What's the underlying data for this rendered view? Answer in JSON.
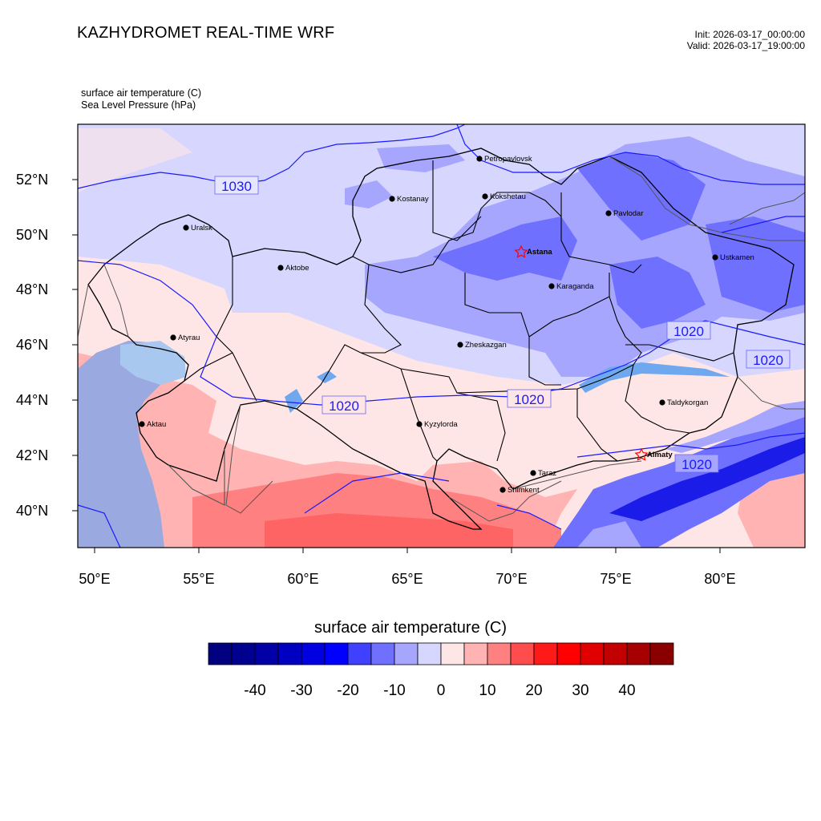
{
  "header": {
    "title": "KAZHYDROMET REAL-TIME WRF",
    "init": "Init: 2026-03-17_00:00:00",
    "valid": "Valid: 2026-03-17_19:00:00"
  },
  "variables": {
    "line1": "surface air temperature   (C)",
    "line2": "Sea Level Pressure   (hPa)"
  },
  "axes": {
    "lat_labels": [
      "52°N",
      "50°N",
      "48°N",
      "46°N",
      "44°N",
      "42°N",
      "40°N"
    ],
    "lon_labels": [
      "50°E",
      "55°E",
      "60°E",
      "65°E",
      "70°E",
      "75°E",
      "80°E"
    ]
  },
  "cities": [
    {
      "name": "Petropavlovsk",
      "capital": false
    },
    {
      "name": "Kostanay",
      "capital": false
    },
    {
      "name": "Kokshetau",
      "capital": false
    },
    {
      "name": "Pavlodar",
      "capital": false
    },
    {
      "name": "Uralsk",
      "capital": false
    },
    {
      "name": "Aktobe",
      "capital": false
    },
    {
      "name": "Astana",
      "capital": true
    },
    {
      "name": "Ustkamen",
      "capital": false
    },
    {
      "name": "Karaganda",
      "capital": false
    },
    {
      "name": "Atyrau",
      "capital": false
    },
    {
      "name": "Zheskazgan",
      "capital": false
    },
    {
      "name": "Aktau",
      "capital": false
    },
    {
      "name": "Kyzylorda",
      "capital": false
    },
    {
      "name": "Taldykorgan",
      "capital": false
    },
    {
      "name": "Almaty",
      "capital": true
    },
    {
      "name": "Taraz",
      "capital": false
    },
    {
      "name": "Shimkent",
      "capital": false
    }
  ],
  "isobar_labels": [
    "1030",
    "1020",
    "1020",
    "1020",
    "1020",
    "1020"
  ],
  "colorbar": {
    "title": "surface air temperature  (C)",
    "tick_labels": [
      "-40",
      "-30",
      "-20",
      "-10",
      "0",
      "10",
      "20",
      "30",
      "40"
    ],
    "colors": [
      "#000080",
      "#00008f",
      "#0000a6",
      "#0000c2",
      "#0000e0",
      "#0000ff",
      "#4040ff",
      "#7070ff",
      "#a6a6ff",
      "#d6d6ff",
      "#ffe6e6",
      "#ffb3b3",
      "#ff8080",
      "#ff4d4d",
      "#ff1a1a",
      "#ff0000",
      "#e00000",
      "#c20000",
      "#a60000",
      "#8a0000"
    ]
  },
  "colors": {
    "isobar": "#1a1aff",
    "capital_marker": "#ff0000",
    "border": "#000000"
  }
}
